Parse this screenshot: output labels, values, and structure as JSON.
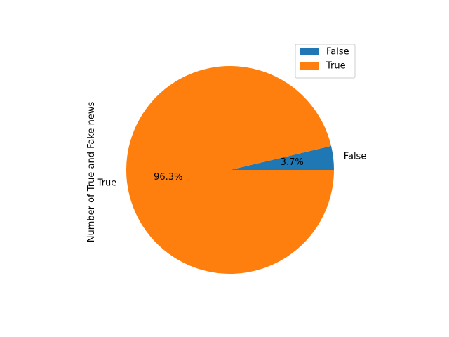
{
  "chart_data": {
    "type": "pie",
    "labels": [
      "False",
      "True"
    ],
    "values": [
      3.7,
      96.3
    ],
    "autopct": [
      "3.7%",
      "96.3%"
    ],
    "colors": [
      "#1f77b4",
      "#ff7f0e"
    ],
    "ylabel": "Number of True and Fake news",
    "legend": {
      "placement": "upper-right",
      "entries": [
        "False",
        "True"
      ]
    },
    "start_angle_deg": 0,
    "direction": "counterclockwise"
  }
}
